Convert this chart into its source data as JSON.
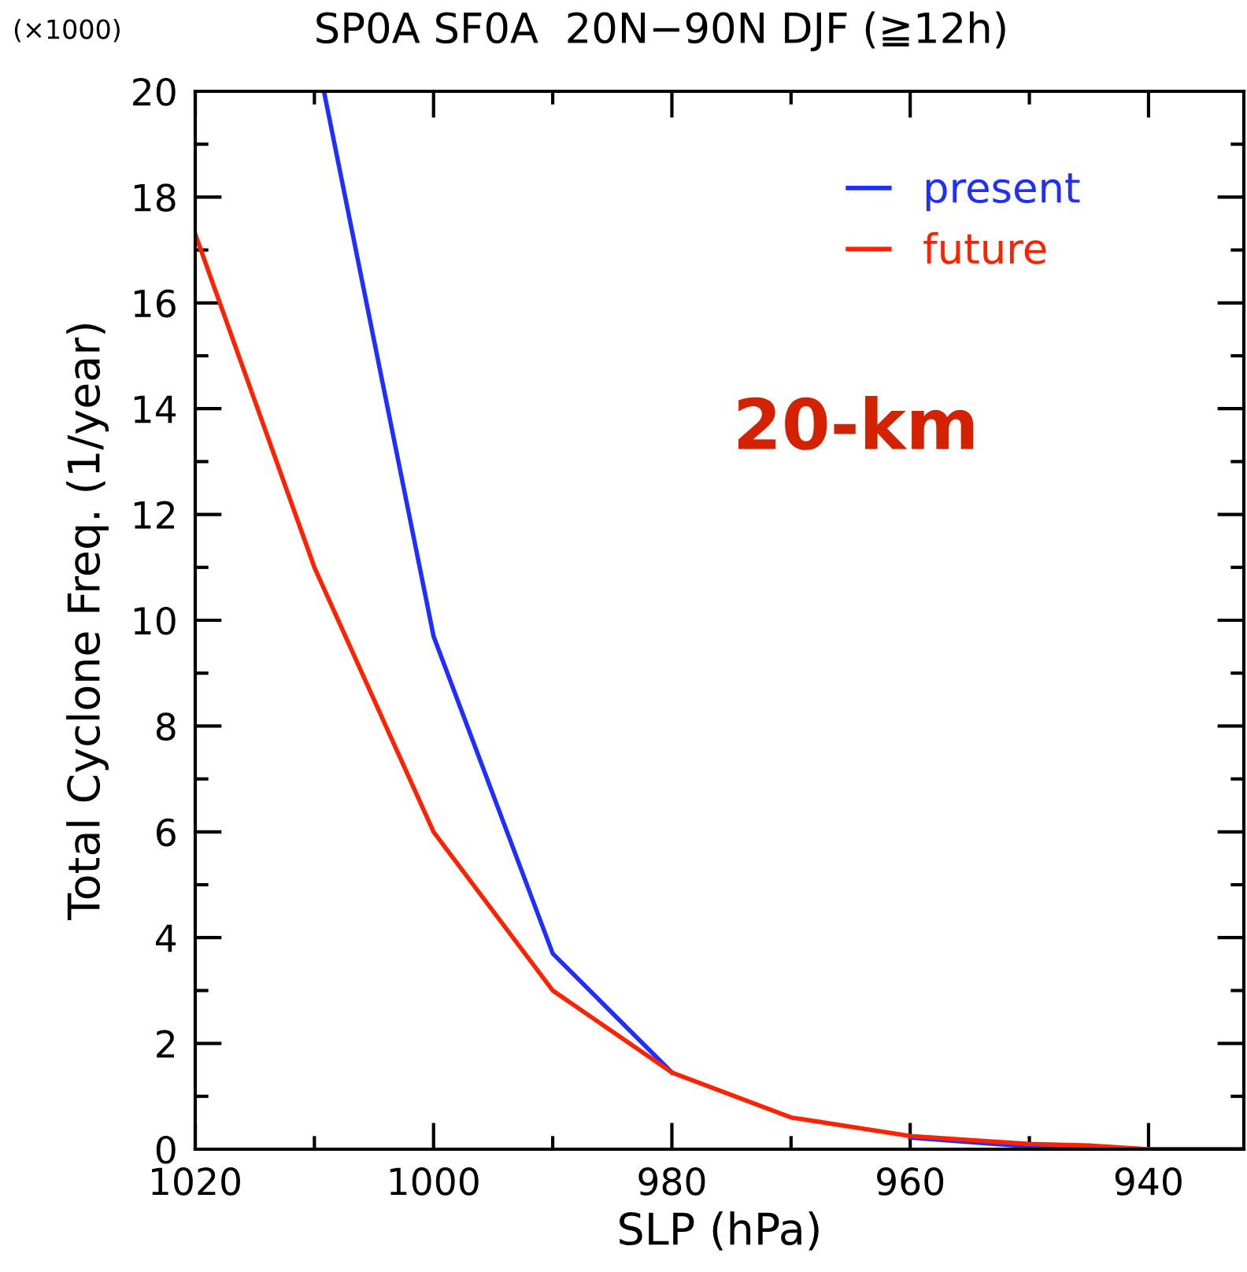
{
  "chart_data": {
    "type": "line",
    "title": "SP0A SF0A  20N−90N DJF (≧12h)",
    "xlabel": "SLP (hPa)",
    "ylabel": "Total Cyclone Freq. (1/year)",
    "annotations": [
      "(×1000)",
      "20-km"
    ],
    "series": [
      {
        "name": "present",
        "color": "#1f2fff",
        "x": [
          1009.2,
          1000,
          990,
          980,
          970,
          960,
          950,
          940,
          932
        ],
        "values": [
          20,
          9.7,
          3.7,
          1.45,
          null,
          0.22,
          0.05,
          0,
          0
        ]
      },
      {
        "name": "future",
        "color": "#ff2200",
        "x": [
          1020,
          1010,
          1000,
          990,
          980,
          970,
          960,
          950,
          945,
          940,
          932
        ],
        "values": [
          17.3,
          11.0,
          6.0,
          3.0,
          1.45,
          0.6,
          0.25,
          0.1,
          0.07,
          0,
          0
        ]
      }
    ],
    "xlim": [
      1020,
      932
    ],
    "xticks": [
      1020,
      1000,
      980,
      960,
      940
    ],
    "ylim": [
      0,
      20
    ],
    "yticks": [
      0,
      2,
      4,
      6,
      8,
      10,
      12,
      14,
      16,
      18,
      20
    ],
    "grid": false,
    "legend": "top right",
    "marker": "none",
    "line_style": "solid"
  }
}
